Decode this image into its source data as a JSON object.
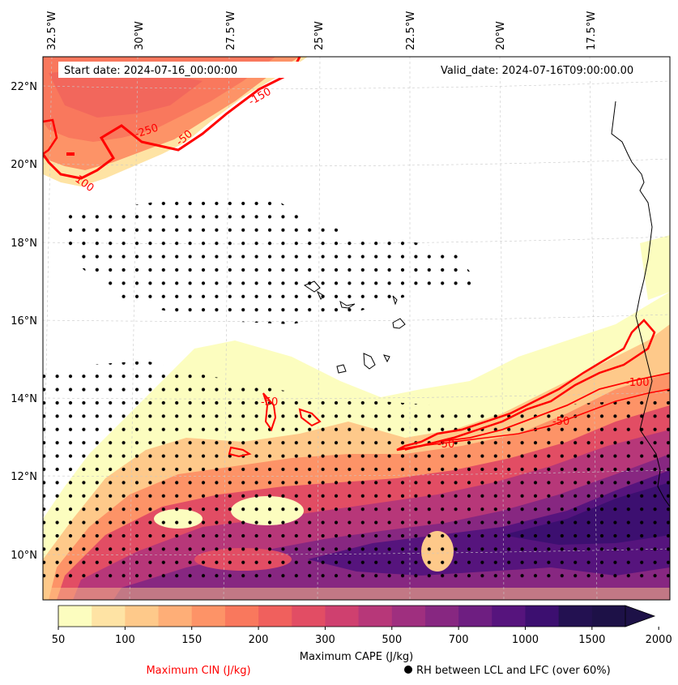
{
  "header": {
    "start_date": "Start date: 2024-07-16_00:00:00",
    "valid_date": "Valid_date: 2024-07-16T09:00:00.00"
  },
  "axes": {
    "lon_labels": [
      "32.5°W",
      "30°W",
      "27.5°W",
      "25°W",
      "22.5°W",
      "20°W",
      "17.5°W"
    ],
    "lat_labels": [
      "22°N",
      "20°N",
      "18°N",
      "16°N",
      "14°N",
      "12°N",
      "10°N"
    ]
  },
  "colorbar": {
    "tick_labels": [
      "50",
      "100",
      "150",
      "200",
      "300",
      "500",
      "700",
      "1000",
      "1500",
      "2000"
    ],
    "label": "Maximum CAPE (J/kg)",
    "extend": "max",
    "colors": [
      "#fcfdbf",
      "#fee3a4",
      "#fec98a",
      "#feae77",
      "#fd9367",
      "#f9785d",
      "#f0605d",
      "#e24d64",
      "#cf406f",
      "#b73779",
      "#9f2f7f",
      "#872781",
      "#6e1e81",
      "#56147d",
      "#3c0f70",
      "#231151",
      "#1d1147"
    ]
  },
  "cin": {
    "legend_label": "Maximum CIN (J/kg)",
    "contour_labels": [
      "-250",
      "-150",
      "-50",
      "-100",
      "-50",
      "-50",
      "-100",
      "-50"
    ],
    "color": "#ff0000"
  },
  "stipple_legend": {
    "label": "RH between LCL and LFC (over 60%)"
  }
}
